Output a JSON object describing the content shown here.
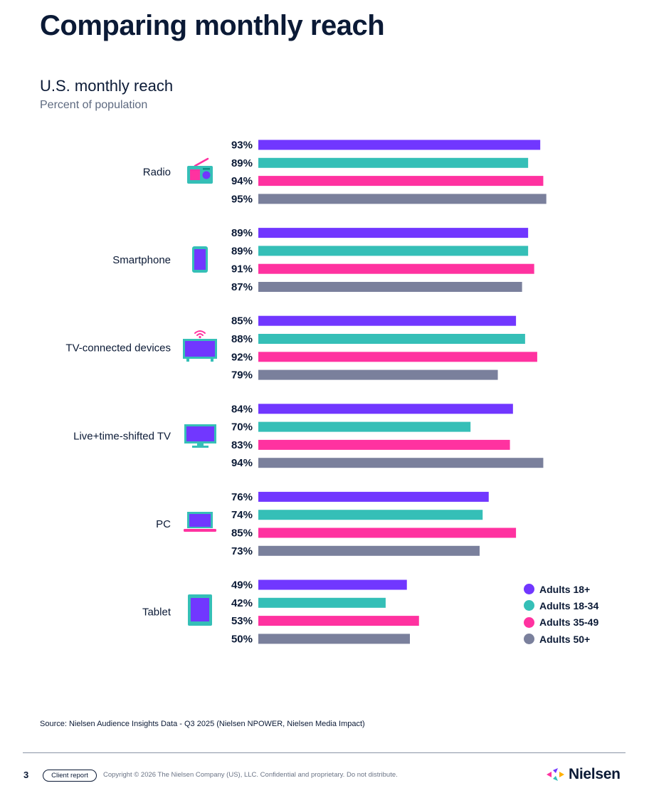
{
  "page": {
    "title": "Comparing monthly reach",
    "source": "Source: Nielsen Audience Insights Data - Q3 2025 (Nielsen NPOWER, Nielsen Media Impact)"
  },
  "footer": {
    "page_number": "3",
    "badge": "Client report",
    "copyright": "Copyright © 2026 The Nielsen Company (US), LLC. Confidential and proprietary. Do not distribute.",
    "logo_text": "Nielsen"
  },
  "chart_data": {
    "type": "bar",
    "orientation": "horizontal",
    "title": "U.S. monthly reach",
    "subtitle": "Percent of population",
    "value_suffix": "%",
    "xlim": [
      0,
      100
    ],
    "grid": false,
    "legend_position": "bottom-right",
    "categories": [
      "Radio",
      "Smartphone",
      "TV-connected devices",
      "Live+time-shifted TV",
      "PC",
      "Tablet"
    ],
    "category_icons": [
      "radio-icon",
      "smartphone-icon",
      "connected-tv-icon",
      "tv-icon",
      "laptop-icon",
      "tablet-icon"
    ],
    "series": [
      {
        "name": "Adults 18+",
        "color": "#7137ff",
        "values": [
          93,
          89,
          85,
          84,
          76,
          49
        ]
      },
      {
        "name": "Adults 18-34",
        "color": "#35bfb7",
        "values": [
          89,
          89,
          88,
          70,
          74,
          42
        ]
      },
      {
        "name": "Adults 35-49",
        "color": "#ff32a0",
        "values": [
          94,
          91,
          92,
          83,
          85,
          53
        ]
      },
      {
        "name": "Adults 50+",
        "color": "#7a809c",
        "values": [
          95,
          87,
          79,
          94,
          73,
          50
        ]
      }
    ]
  }
}
